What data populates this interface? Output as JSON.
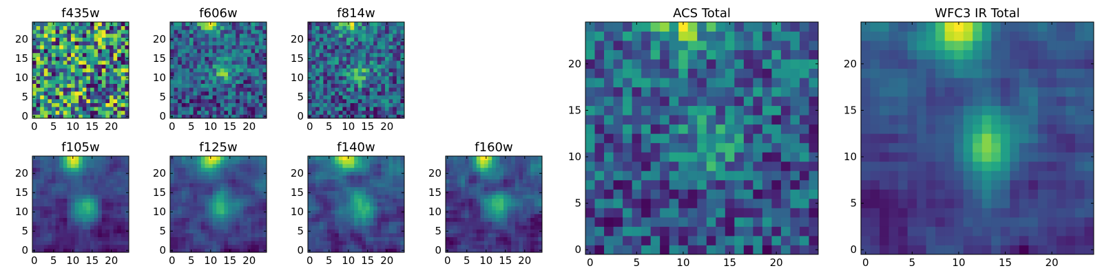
{
  "chart_data": [
    {
      "type": "heatmap",
      "title": "f435w",
      "pattern": "noise",
      "xticks": [
        "0",
        "5",
        "10",
        "15",
        "20"
      ],
      "yticks": [
        "0",
        "5",
        "10",
        "15",
        "20"
      ],
      "xlim": [
        -0.5,
        24.5
      ],
      "ylim": [
        -0.5,
        24.5
      ],
      "grid_size": 25,
      "colormap": "viridis"
    },
    {
      "type": "heatmap",
      "title": "f606w",
      "pattern": "source",
      "xticks": [
        "0",
        "5",
        "10",
        "15",
        "20"
      ],
      "yticks": [
        "0",
        "5",
        "10",
        "15",
        "20"
      ],
      "xlim": [
        -0.5,
        24.5
      ],
      "ylim": [
        -0.5,
        24.5
      ],
      "grid_size": 25,
      "colormap": "viridis"
    },
    {
      "type": "heatmap",
      "title": "f814w",
      "pattern": "source",
      "xticks": [
        "0",
        "5",
        "10",
        "15",
        "20"
      ],
      "yticks": [
        "0",
        "5",
        "10",
        "15",
        "20"
      ],
      "xlim": [
        -0.5,
        24.5
      ],
      "ylim": [
        -0.5,
        24.5
      ],
      "grid_size": 25,
      "colormap": "viridis"
    },
    {
      "type": "heatmap",
      "title": "f105w",
      "pattern": "source-smooth",
      "xticks": [
        "0",
        "5",
        "10",
        "15",
        "20"
      ],
      "yticks": [
        "0",
        "5",
        "10",
        "15",
        "20"
      ],
      "xlim": [
        -0.5,
        24.5
      ],
      "ylim": [
        -0.5,
        24.5
      ],
      "grid_size": 25,
      "colormap": "viridis"
    },
    {
      "type": "heatmap",
      "title": "f125w",
      "pattern": "source-smooth",
      "xticks": [
        "0",
        "5",
        "10",
        "15",
        "20"
      ],
      "yticks": [
        "0",
        "5",
        "10",
        "15",
        "20"
      ],
      "xlim": [
        -0.5,
        24.5
      ],
      "ylim": [
        -0.5,
        24.5
      ],
      "grid_size": 25,
      "colormap": "viridis"
    },
    {
      "type": "heatmap",
      "title": "f140w",
      "pattern": "source-smooth",
      "xticks": [
        "0",
        "5",
        "10",
        "15",
        "20"
      ],
      "yticks": [
        "0",
        "5",
        "10",
        "15",
        "20"
      ],
      "xlim": [
        -0.5,
        24.5
      ],
      "ylim": [
        -0.5,
        24.5
      ],
      "grid_size": 25,
      "colormap": "viridis"
    },
    {
      "type": "heatmap",
      "title": "f160w",
      "pattern": "source-smooth",
      "xticks": [
        "0",
        "5",
        "10",
        "15",
        "20"
      ],
      "yticks": [
        "0",
        "5",
        "10",
        "15",
        "20"
      ],
      "xlim": [
        -0.5,
        24.5
      ],
      "ylim": [
        -0.5,
        24.5
      ],
      "grid_size": 25,
      "colormap": "viridis"
    },
    {
      "type": "heatmap",
      "title": "ACS Total",
      "pattern": "source",
      "xticks": [
        "0",
        "5",
        "10",
        "15",
        "20"
      ],
      "yticks": [
        "0",
        "5",
        "10",
        "15",
        "20"
      ],
      "xlim": [
        -0.5,
        24.5
      ],
      "ylim": [
        -0.5,
        24.5
      ],
      "grid_size": 25,
      "colormap": "viridis"
    },
    {
      "type": "heatmap",
      "title": "WFC3 IR Total",
      "pattern": "source-smooth",
      "xticks": [
        "0",
        "5",
        "10",
        "15",
        "20"
      ],
      "yticks": [
        "0",
        "5",
        "10",
        "15",
        "20"
      ],
      "xlim": [
        -0.5,
        24.5
      ],
      "ylim": [
        -0.5,
        24.5
      ],
      "grid_size": 25,
      "colormap": "viridis"
    }
  ]
}
